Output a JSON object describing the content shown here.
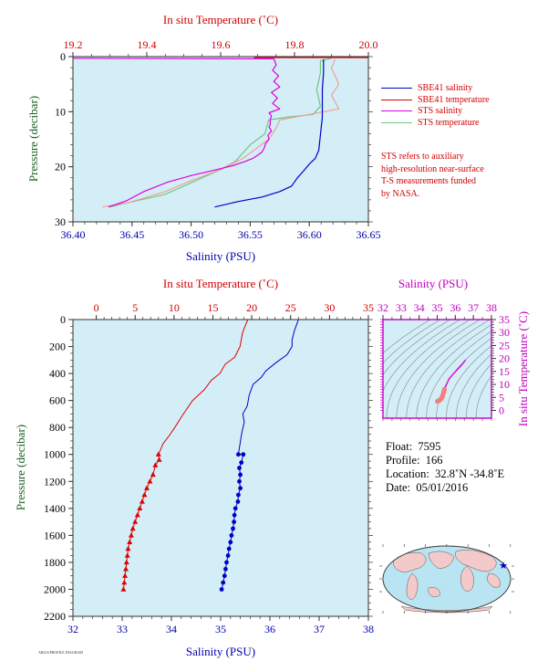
{
  "colors": {
    "background": "#d3eef7",
    "sbe_salinity": "#0000c8",
    "sbe_temperature": "#e00000",
    "sts_salinity": "#e000e0",
    "sts_temperature": "#70c880",
    "sts_temperature_top": "#f0a098",
    "axis_red": "#d00000",
    "axis_blue": "#0000b0",
    "axis_green": "#1b5e20",
    "axis_magenta": "#c000c0"
  },
  "legend": {
    "items": [
      {
        "label": "SBE41 salinity",
        "color": "#0000c8"
      },
      {
        "label": "SBE41 temperature",
        "color": "#e00000"
      },
      {
        "label": "STS salinity",
        "color": "#e000e0"
      },
      {
        "label": "STS temperature",
        "color": "#70c880"
      }
    ]
  },
  "note": {
    "lines": [
      "STS refers to auxiliary",
      "high-resolution near-surface",
      "T-S measurements funded",
      "by NASA."
    ]
  },
  "float_info": {
    "float_label": "Float:",
    "float_value": "7595",
    "profile_label": "Profile:",
    "profile_value": "166",
    "location_label": "Location:",
    "location_value": "32.8˚N  -34.8˚E",
    "date_label": "Date:",
    "date_value": "05/01/2016"
  },
  "footer_text": "ARGO/PROFILE DIAGRAM",
  "chart_data": [
    {
      "id": "near-surface-profile",
      "type": "line",
      "top_axis_label": "In situ Temperature (˚C)",
      "bottom_axis_label": "Salinity (PSU)",
      "left_axis_label": "Pressure (decibar)",
      "temperature_range": [
        19.2,
        20.0
      ],
      "temperature_ticks": [
        "19.2",
        "19.4",
        "19.6",
        "19.8",
        "20.0"
      ],
      "salinity_range": [
        36.4,
        36.65
      ],
      "salinity_ticks": [
        "36.40",
        "36.45",
        "36.50",
        "36.55",
        "36.60",
        "36.65"
      ],
      "pressure_range": [
        0,
        30
      ],
      "pressure_ticks": [
        "0",
        "10",
        "20",
        "30"
      ],
      "pressure_inverted": true,
      "series": [
        {
          "name": "SBE41 salinity",
          "x_axis": "salinity",
          "points": [
            [
              36.612,
              0.5
            ],
            [
              36.612,
              3
            ],
            [
              36.611,
              6
            ],
            [
              36.611,
              9
            ],
            [
              36.611,
              11
            ],
            [
              36.61,
              13
            ],
            [
              36.609,
              15
            ],
            [
              36.608,
              17
            ],
            [
              36.605,
              18.5
            ],
            [
              36.6,
              19.5
            ],
            [
              36.595,
              20.8
            ],
            [
              36.59,
              22
            ],
            [
              36.585,
              23.5
            ],
            [
              36.575,
              24.5
            ],
            [
              36.56,
              25.5
            ],
            [
              36.54,
              26.3
            ],
            [
              36.52,
              27.3
            ]
          ]
        },
        {
          "name": "SBE41 temperature",
          "x_axis": "temperature",
          "points": [
            [
              19.69,
              0.1
            ],
            [
              20.0,
              0.1
            ]
          ]
        },
        {
          "name": "STS salinity",
          "x_axis": "salinity",
          "points": [
            [
              36.4,
              0.3
            ],
            [
              36.57,
              0.4
            ],
            [
              36.572,
              1.5
            ],
            [
              36.569,
              2.5
            ],
            [
              36.574,
              3.5
            ],
            [
              36.57,
              4.5
            ],
            [
              36.575,
              5.5
            ],
            [
              36.568,
              6.5
            ],
            [
              36.573,
              7.5
            ],
            [
              36.569,
              8.5
            ],
            [
              36.575,
              9.5
            ],
            [
              36.566,
              10.2
            ],
            [
              36.568,
              10.8
            ],
            [
              36.567,
              11.5
            ],
            [
              36.567,
              12.3
            ],
            [
              36.566,
              12.8
            ],
            [
              36.568,
              13.5
            ],
            [
              36.565,
              14.3
            ],
            [
              36.566,
              15
            ],
            [
              36.563,
              15.8
            ],
            [
              36.562,
              16.5
            ],
            [
              36.56,
              17.3
            ],
            [
              36.557,
              17.8
            ],
            [
              36.552,
              18.5
            ],
            [
              36.545,
              19.1
            ],
            [
              36.535,
              19.8
            ],
            [
              36.52,
              20.6
            ],
            [
              36.5,
              21.6
            ],
            [
              36.48,
              22.8
            ],
            [
              36.46,
              24.5
            ],
            [
              36.445,
              26.2
            ],
            [
              36.43,
              27.3
            ]
          ]
        },
        {
          "name": "STS temperature",
          "x_axis": "temperature",
          "points": [
            [
              19.9,
              0.3
            ],
            [
              19.87,
              0.8
            ],
            [
              19.87,
              3
            ],
            [
              19.86,
              6
            ],
            [
              19.87,
              9
            ],
            [
              19.85,
              10.5
            ],
            [
              19.78,
              11
            ],
            [
              19.73,
              11.5
            ],
            [
              19.72,
              14
            ],
            [
              19.7,
              15
            ],
            [
              19.68,
              16
            ],
            [
              19.66,
              17.5
            ],
            [
              19.64,
              19
            ],
            [
              19.6,
              20.5
            ],
            [
              19.55,
              22
            ],
            [
              19.5,
              23.5
            ],
            [
              19.45,
              25
            ],
            [
              19.35,
              26.5
            ],
            [
              19.3,
              27.3
            ]
          ]
        },
        {
          "name": "STS temperature (surface)",
          "x_axis": "temperature",
          "points": [
            [
              19.91,
              0.5
            ],
            [
              19.9,
              2
            ],
            [
              19.92,
              5
            ],
            [
              19.9,
              7
            ],
            [
              19.92,
              9.5
            ],
            [
              19.84,
              10.5
            ],
            [
              19.76,
              11.5
            ],
            [
              19.75,
              13
            ],
            [
              19.73,
              15
            ],
            [
              19.7,
              16.5
            ],
            [
              19.66,
              18.5
            ],
            [
              19.6,
              20.5
            ],
            [
              19.52,
              22.5
            ],
            [
              19.45,
              24.5
            ],
            [
              19.35,
              26.5
            ],
            [
              19.28,
              27.3
            ]
          ]
        }
      ]
    },
    {
      "id": "full-profile",
      "type": "line",
      "top_axis_label": "In situ Temperature (˚C)",
      "bottom_axis_label": "Salinity (PSU)",
      "left_axis_label": "Pressure (decibar)",
      "temperature_range": [
        -3,
        35
      ],
      "temperature_ticks": [
        "0",
        "5",
        "10",
        "15",
        "20",
        "25",
        "30",
        "35"
      ],
      "salinity_range": [
        32,
        38
      ],
      "salinity_ticks": [
        "32",
        "33",
        "34",
        "35",
        "36",
        "37",
        "38"
      ],
      "pressure_range": [
        0,
        2200
      ],
      "pressure_ticks": [
        "0",
        "200",
        "400",
        "600",
        "800",
        "1000",
        "1200",
        "1400",
        "1600",
        "1800",
        "2000",
        "2200"
      ],
      "pressure_inverted": true,
      "series": [
        {
          "name": "SBE41 temperature",
          "x_axis": "temperature",
          "marker": "triangle-above-1000",
          "points": [
            [
              19.5,
              0
            ],
            [
              19.2,
              40
            ],
            [
              18.8,
              100
            ],
            [
              18.5,
              200
            ],
            [
              17.8,
              280
            ],
            [
              16.6,
              330
            ],
            [
              15.9,
              400
            ],
            [
              14.8,
              450
            ],
            [
              13.9,
              520
            ],
            [
              12.4,
              600
            ],
            [
              11.2,
              700
            ],
            [
              10.1,
              800
            ],
            [
              9.4,
              860
            ],
            [
              8.6,
              920
            ],
            [
              8.0,
              1000
            ],
            [
              8.1,
              1040
            ],
            [
              7.6,
              1080
            ],
            [
              7.3,
              1150
            ],
            [
              6.9,
              1200
            ],
            [
              6.5,
              1250
            ],
            [
              6.2,
              1300
            ],
            [
              5.9,
              1350
            ],
            [
              5.6,
              1400
            ],
            [
              5.3,
              1450
            ],
            [
              5.0,
              1500
            ],
            [
              4.7,
              1550
            ],
            [
              4.5,
              1600
            ],
            [
              4.3,
              1650
            ],
            [
              4.1,
              1700
            ],
            [
              4.0,
              1750
            ],
            [
              3.9,
              1800
            ],
            [
              3.8,
              1850
            ],
            [
              3.7,
              1900
            ],
            [
              3.6,
              1950
            ],
            [
              3.5,
              2000
            ]
          ]
        },
        {
          "name": "SBE41 salinity",
          "x_axis": "salinity",
          "marker": "dot-above-1000",
          "points": [
            [
              36.58,
              0
            ],
            [
              36.55,
              30
            ],
            [
              36.5,
              80
            ],
            [
              36.45,
              150
            ],
            [
              36.45,
              200
            ],
            [
              36.35,
              260
            ],
            [
              36.12,
              320
            ],
            [
              35.92,
              380
            ],
            [
              35.82,
              430
            ],
            [
              35.66,
              480
            ],
            [
              35.58,
              560
            ],
            [
              35.54,
              640
            ],
            [
              35.45,
              700
            ],
            [
              35.48,
              760
            ],
            [
              35.44,
              820
            ],
            [
              35.42,
              860
            ],
            [
              35.36,
              1000
            ],
            [
              35.46,
              1000
            ],
            [
              35.42,
              1060
            ],
            [
              35.38,
              1100
            ],
            [
              35.4,
              1150
            ],
            [
              35.38,
              1200
            ],
            [
              35.4,
              1250
            ],
            [
              35.36,
              1300
            ],
            [
              35.35,
              1350
            ],
            [
              35.3,
              1400
            ],
            [
              35.28,
              1450
            ],
            [
              35.27,
              1500
            ],
            [
              35.25,
              1550
            ],
            [
              35.22,
              1600
            ],
            [
              35.2,
              1650
            ],
            [
              35.17,
              1700
            ],
            [
              35.15,
              1750
            ],
            [
              35.12,
              1800
            ],
            [
              35.1,
              1850
            ],
            [
              35.08,
              1900
            ],
            [
              35.05,
              1950
            ],
            [
              35.02,
              2000
            ]
          ]
        }
      ]
    },
    {
      "id": "ts-diagram",
      "type": "scatter",
      "top_axis_label": "Salinity (PSU)",
      "right_axis_label": "In situ Temperature (˚C)",
      "salinity_range": [
        32,
        38
      ],
      "salinity_ticks": [
        "32",
        "33",
        "34",
        "35",
        "36",
        "37",
        "38"
      ],
      "temperature_range": [
        -3,
        35
      ],
      "temperature_ticks": [
        "0",
        "5",
        "10",
        "15",
        "20",
        "25",
        "30",
        "35"
      ],
      "series": [
        {
          "name": "T-S profile",
          "points": [
            [
              36.58,
              19.5
            ],
            [
              36.35,
              17.5
            ],
            [
              35.95,
              14.5
            ],
            [
              35.66,
              12.2
            ],
            [
              35.5,
              9.8
            ],
            [
              35.4,
              8.0
            ],
            [
              35.36,
              6.9
            ],
            [
              35.3,
              5.6
            ],
            [
              35.22,
              4.5
            ],
            [
              35.1,
              3.8
            ],
            [
              35.02,
              3.5
            ]
          ]
        }
      ]
    }
  ]
}
